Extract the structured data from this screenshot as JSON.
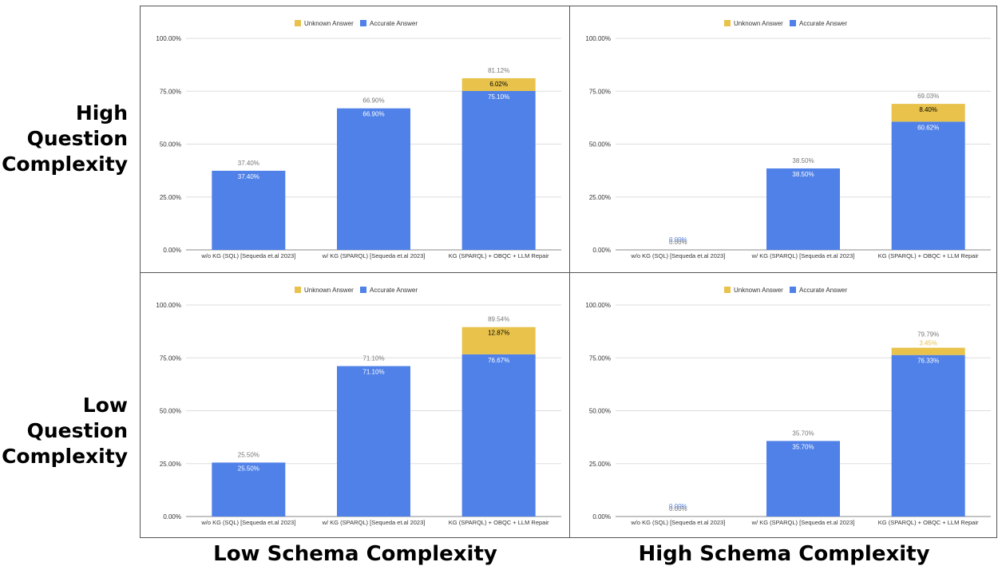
{
  "row_labels": [
    [
      "High",
      "Question",
      "Complexity"
    ],
    [
      "Low",
      "Question",
      "Complexity"
    ]
  ],
  "col_labels": [
    "Low Schema Complexity",
    "High Schema Complexity"
  ],
  "colors": {
    "accurate": "#4f81e8",
    "unknown": "#e8c24a",
    "grid": "#dddddd",
    "axis_text": "#333333",
    "value_text": "#777777"
  },
  "chart_data": [
    {
      "type": "bar",
      "stacked": true,
      "position": "top-left",
      "legend": [
        "Unknown Answer",
        "Accurate Answer"
      ],
      "legend_placement": "top",
      "categories": [
        "w/o KG (SQL) [Sequeda et.al 2023]",
        "w/ KG (SPARQL) [Sequeda et.al 2023]",
        "KG (SPARQL) + OBQC + LLM Repair"
      ],
      "y_ticks": [
        "0.00%",
        "25.00%",
        "50.00%",
        "75.00%",
        "100.00%"
      ],
      "ylim": [
        0,
        100
      ],
      "series": [
        {
          "name": "Accurate Answer",
          "values": [
            37.4,
            66.9,
            75.1
          ],
          "labels": [
            "37.40%",
            "66.90%",
            "75.10%"
          ]
        },
        {
          "name": "Unknown Answer",
          "values": [
            0,
            0,
            6.02
          ],
          "labels": [
            "",
            "",
            "6.02%"
          ]
        }
      ],
      "totals": [
        37.4,
        66.9,
        81.12
      ],
      "total_labels": [
        "37.40%",
        "66.90%",
        "81.12%"
      ]
    },
    {
      "type": "bar",
      "stacked": true,
      "position": "top-right",
      "legend": [
        "Unknown Answer",
        "Accurate Answer"
      ],
      "legend_placement": "top",
      "categories": [
        "w/o KG (SQL) [Sequeda et.al 2023]",
        "w/ KG (SPARQL) [Sequeda et.al 2023]",
        "KG (SPARQL) + OBQC + LLM Repair"
      ],
      "y_ticks": [
        "0.00%",
        "25.00%",
        "50.00%",
        "75.00%",
        "100.00%"
      ],
      "ylim": [
        0,
        100
      ],
      "series": [
        {
          "name": "Accurate Answer",
          "values": [
            0.0,
            38.5,
            60.62
          ],
          "labels": [
            "0.00%",
            "38.50%",
            "60.62%"
          ]
        },
        {
          "name": "Unknown Answer",
          "values": [
            0,
            0,
            8.4
          ],
          "labels": [
            "",
            "",
            "8.40%"
          ]
        }
      ],
      "totals": [
        0.0,
        38.5,
        69.03
      ],
      "total_labels": [
        "0.00%",
        "38.50%",
        "69.03%"
      ]
    },
    {
      "type": "bar",
      "stacked": true,
      "position": "bottom-left",
      "legend": [
        "Unknown Answer",
        "Accurate Answer"
      ],
      "legend_placement": "top",
      "categories": [
        "w/o KG (SQL) [Sequeda et.al 2023]",
        "w/ KG (SPARQL) [Sequeda et.al 2023]",
        "KG (SPARQL) + OBQC + LLM Repair"
      ],
      "y_ticks": [
        "0.00%",
        "25.00%",
        "50.00%",
        "75.00%",
        "100.00%"
      ],
      "ylim": [
        0,
        100
      ],
      "series": [
        {
          "name": "Accurate Answer",
          "values": [
            25.5,
            71.1,
            76.67
          ],
          "labels": [
            "25.50%",
            "71.10%",
            "76.67%"
          ]
        },
        {
          "name": "Unknown Answer",
          "values": [
            0,
            0,
            12.87
          ],
          "labels": [
            "",
            "",
            "12.87%"
          ]
        }
      ],
      "totals": [
        25.5,
        71.1,
        89.54
      ],
      "total_labels": [
        "25.50%",
        "71.10%",
        "89.54%"
      ]
    },
    {
      "type": "bar",
      "stacked": true,
      "position": "bottom-right",
      "legend": [
        "Unknown Answer",
        "Accurate Answer"
      ],
      "legend_placement": "top",
      "categories": [
        "w/o KG (SQL) [Sequeda et.al 2023]",
        "w/ KG (SPARQL) [Sequeda et.al 2023]",
        "KG (SPARQL) + OBQC + LLM Repair"
      ],
      "y_ticks": [
        "0.00%",
        "25.00%",
        "50.00%",
        "75.00%",
        "100.00%"
      ],
      "ylim": [
        0,
        100
      ],
      "series": [
        {
          "name": "Accurate Answer",
          "values": [
            0.0,
            35.7,
            76.33
          ],
          "labels": [
            "0.00%",
            "35.70%",
            "76.33%"
          ]
        },
        {
          "name": "Unknown Answer",
          "values": [
            0,
            0,
            3.45
          ],
          "labels": [
            "",
            "",
            "3.45%"
          ]
        }
      ],
      "totals": [
        0.0,
        35.7,
        79.79
      ],
      "total_labels": [
        "0.00%",
        "35.70%",
        "79.79%"
      ]
    }
  ]
}
